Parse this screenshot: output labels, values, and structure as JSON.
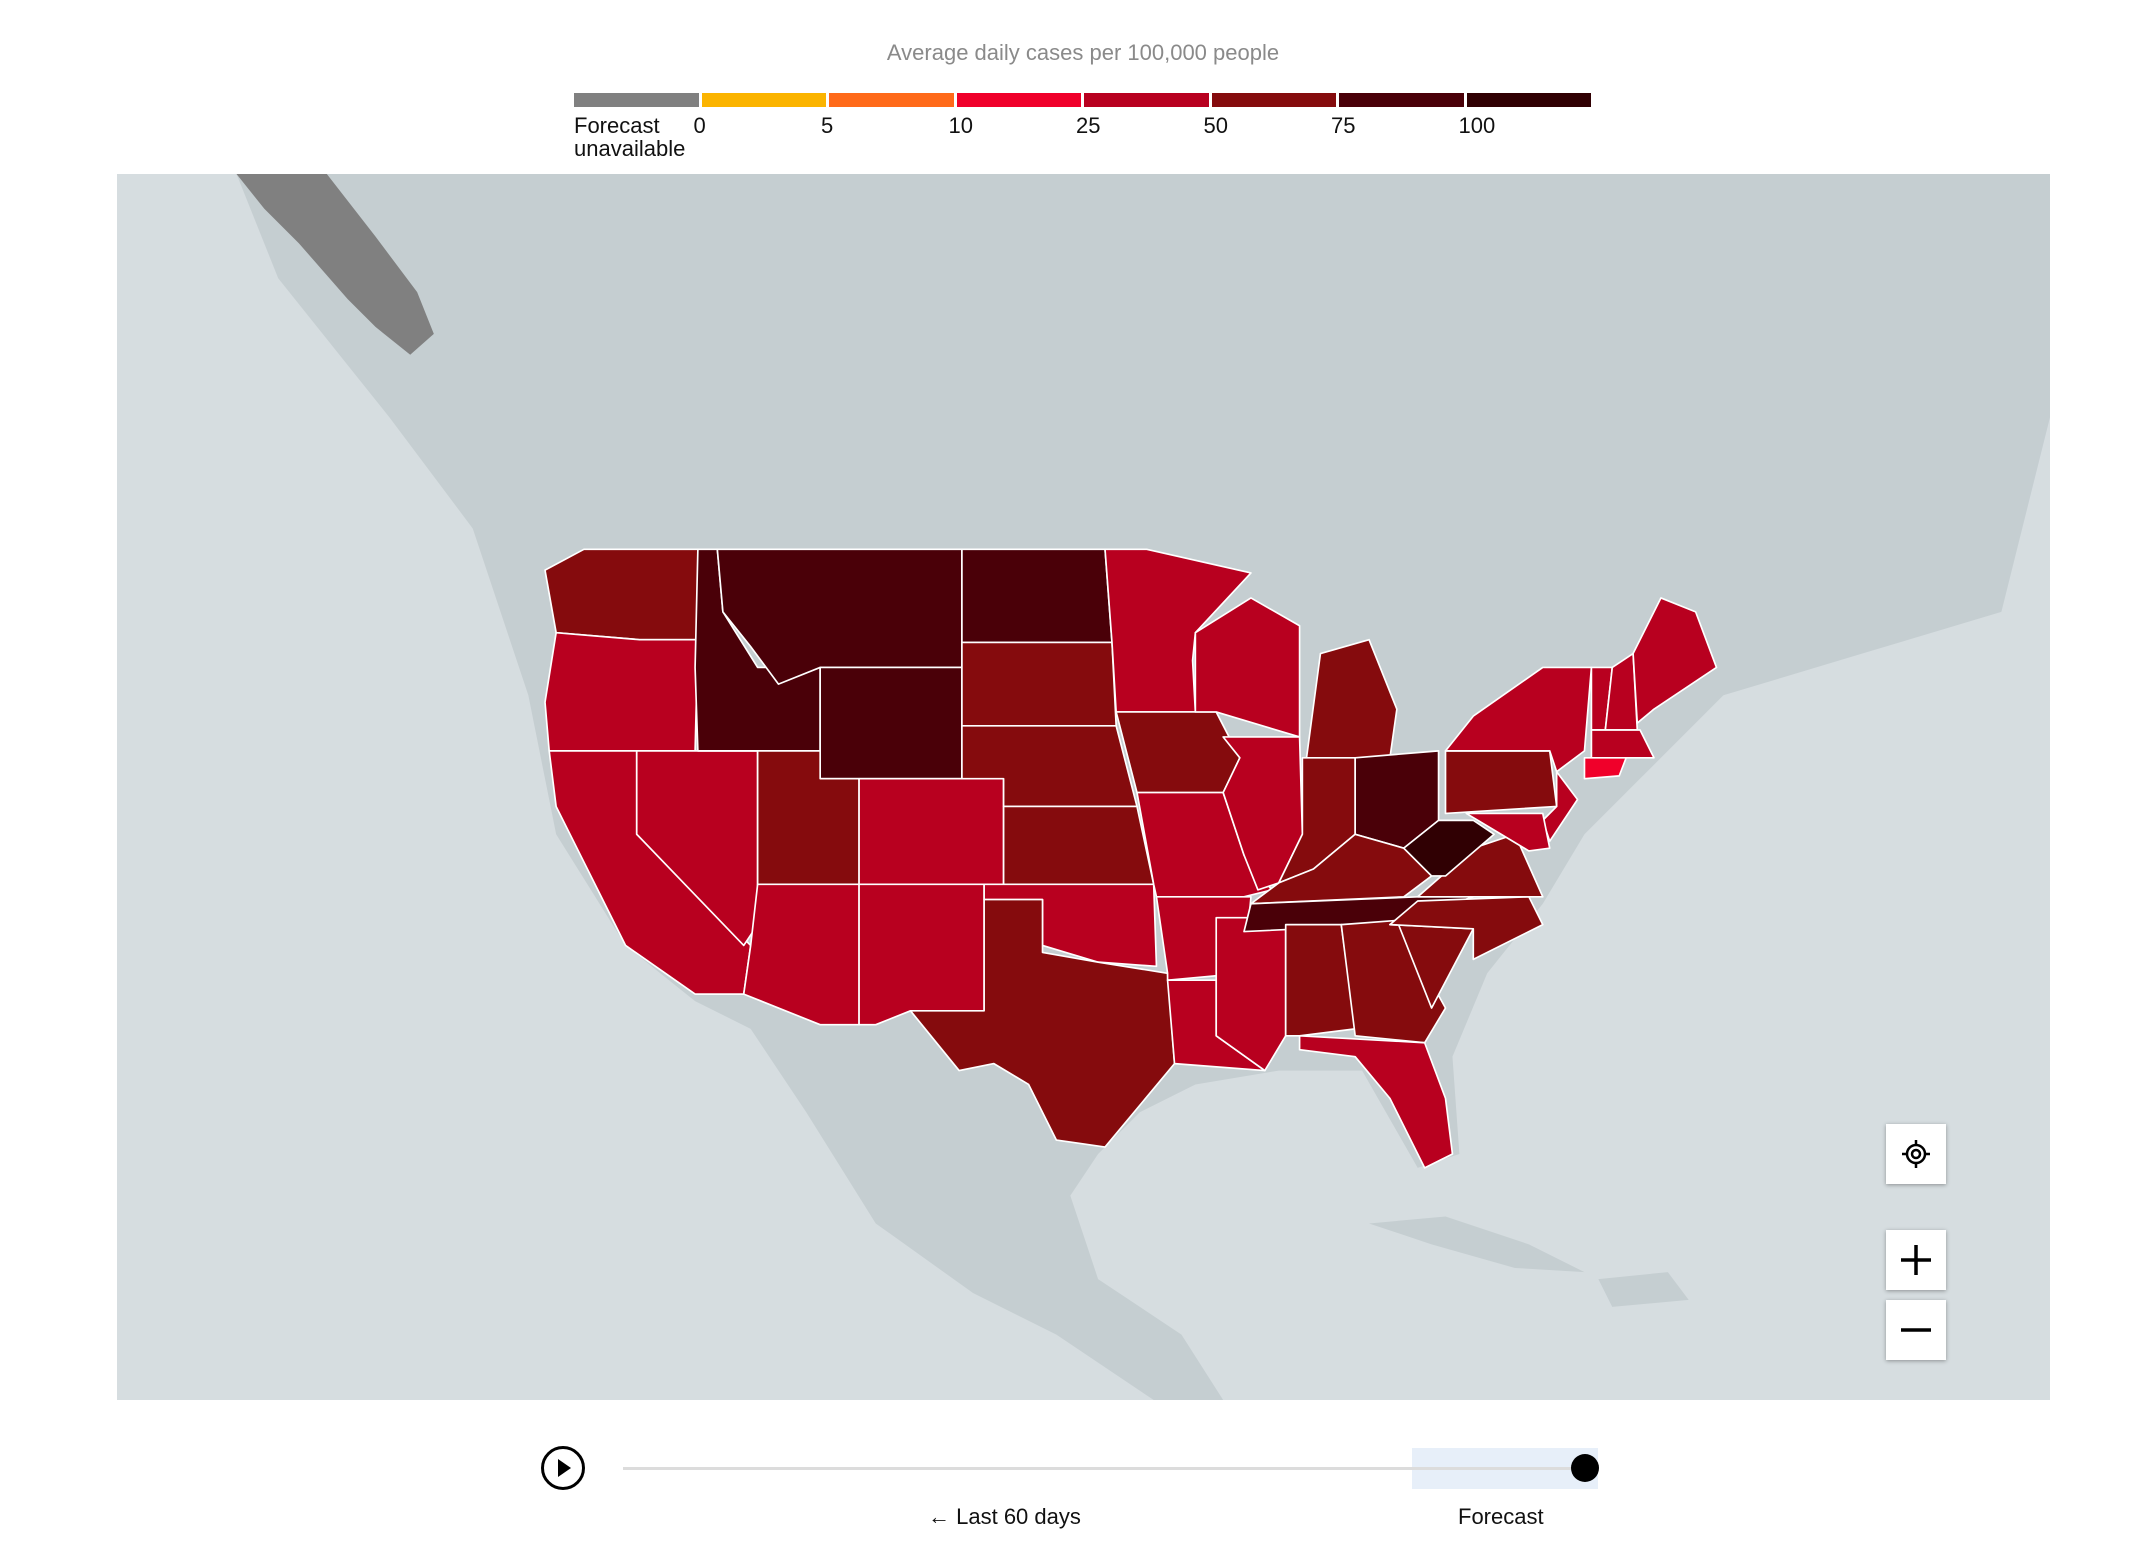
{
  "legend": {
    "title": "Average daily cases per 100,000 people",
    "bins": [
      {
        "label": "Forecast unavailable",
        "color": "#808080"
      },
      {
        "label": "0",
        "color": "#fbb400"
      },
      {
        "label": "5",
        "color": "#ff6a1a"
      },
      {
        "label": "10",
        "color": "#f0002a"
      },
      {
        "label": "25",
        "color": "#b8001f"
      },
      {
        "label": "50",
        "color": "#850b0d"
      },
      {
        "label": "75",
        "color": "#4a0008"
      },
      {
        "label": "100",
        "color": "#300003"
      }
    ],
    "unavailable_line1": "Forecast",
    "unavailable_line2": "unavailable"
  },
  "map": {
    "water_color": "#d6dde0",
    "land_color": "#c5ced1",
    "states": {
      "WA": "50",
      "OR": "25",
      "CA": "25",
      "NV": "25",
      "ID": "75",
      "MT": "75",
      "WY": "75",
      "UT": "50",
      "CO": "25",
      "AZ": "25",
      "NM": "25",
      "ND": "75",
      "SD": "50",
      "NE": "50",
      "KS": "50",
      "OK": "25",
      "TX": "50",
      "MN": "25",
      "IA": "50",
      "MO": "25",
      "AR": "25",
      "LA": "25",
      "MS": "25",
      "WI": "25",
      "IL": "25",
      "MI": "50",
      "IN": "50",
      "OH": "75",
      "KY": "50",
      "TN": "75",
      "AL": "50",
      "GA": "50",
      "FL": "25",
      "SC": "50",
      "NC": "50",
      "VA": "50",
      "WV": "100",
      "PA": "50",
      "NY": "25",
      "NJ": "25",
      "MD": "25",
      "VT": "25",
      "NH": "25",
      "ME": "25",
      "MA": "25",
      "CT": "10",
      "AK": "Forecast unavailable"
    },
    "controls": {
      "locate_icon": "crosshair-icon",
      "zoom_in_icon": "plus-icon",
      "zoom_out_icon": "minus-icon"
    }
  },
  "timeline": {
    "play_icon": "play-icon",
    "past_label": "Last 60 days",
    "past_arrow_icon": "arrow-left-icon",
    "forecast_label": "Forecast",
    "position_percent": 100
  }
}
